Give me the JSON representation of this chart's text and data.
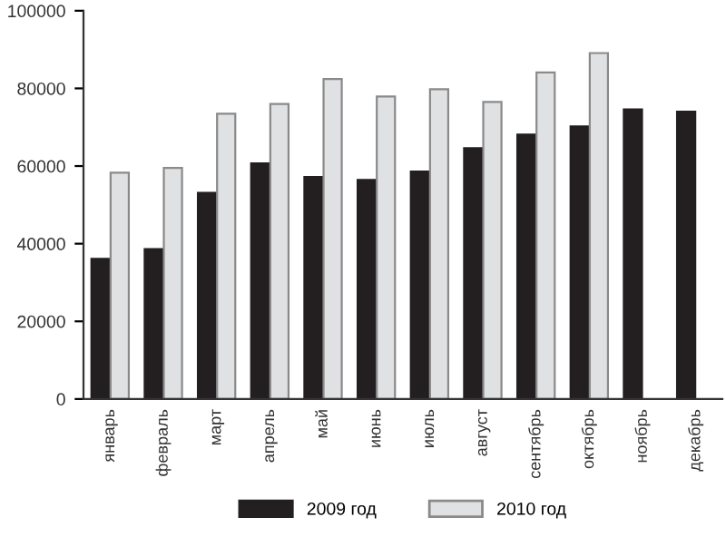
{
  "chart_data": {
    "type": "bar",
    "categories": [
      "январь",
      "февраль",
      "март",
      "апрель",
      "май",
      "июнь",
      "июль",
      "август",
      "сентябрь",
      "октябрь",
      "ноябрь",
      "декабрь"
    ],
    "series": [
      {
        "name": "2009 год",
        "color": "#231f20",
        "values": [
          36100,
          38600,
          53100,
          60700,
          57200,
          56400,
          58600,
          64600,
          68100,
          70200,
          74600,
          74000
        ]
      },
      {
        "name": "2010 год",
        "color": "#e0e1e3",
        "values": [
          58300,
          59500,
          73500,
          76000,
          82400,
          77900,
          79800,
          76500,
          84100,
          89100,
          null,
          null
        ]
      }
    ],
    "ylim": [
      0,
      100000
    ],
    "yticks": [
      0,
      20000,
      40000,
      60000,
      80000,
      100000
    ],
    "grid": false,
    "legend": "bottom"
  }
}
